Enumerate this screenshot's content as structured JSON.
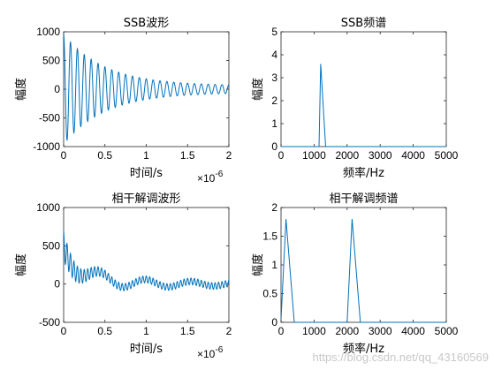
{
  "watermark": "https://blog.csdn.net/qq_43160569",
  "colors": {
    "line": "#0072BD",
    "axis": "#262626",
    "background": "#ffffff"
  },
  "chart_data": [
    {
      "type": "line",
      "title": "SSB波形",
      "xlabel": "时间/s",
      "ylabel": "幅度",
      "x_multiplier": "×10",
      "x_multiplier_exp": "-6",
      "xlim": [
        0,
        2
      ],
      "ylim": [
        -1000,
        1000
      ],
      "xticks": [
        "0",
        "0.5",
        "1",
        "1.5",
        "2"
      ],
      "yticks": [
        "-1000",
        "-500",
        "0",
        "500",
        "1000"
      ],
      "signal": {
        "kind": "decaying_oscillation",
        "amplitude": 900,
        "decay_time_us": 0.5,
        "frequency_mhz": 12,
        "floor_amplitude": 60
      }
    },
    {
      "type": "line",
      "title": "SSB频谱",
      "xlabel": "频率/Hz",
      "ylabel": "幅度",
      "xlim": [
        0,
        5000
      ],
      "ylim": [
        0,
        5
      ],
      "xticks": [
        "0",
        "1000",
        "2000",
        "3000",
        "4000",
        "5000"
      ],
      "yticks": [
        "0",
        "1",
        "2",
        "3",
        "4",
        "5"
      ],
      "x": [
        0,
        1150,
        1200,
        1350,
        5000
      ],
      "y": [
        0,
        0,
        3.6,
        0,
        0
      ]
    },
    {
      "type": "line",
      "title": "相干解调波形",
      "xlabel": "时间/s",
      "ylabel": "幅度",
      "x_multiplier": "×10",
      "x_multiplier_exp": "-6",
      "xlim": [
        0,
        2
      ],
      "ylim": [
        -500,
        1000
      ],
      "xticks": [
        "0",
        "0.5",
        "1",
        "1.5",
        "2"
      ],
      "yticks": [
        "-500",
        "0",
        "500",
        "1000"
      ],
      "signal": {
        "kind": "demodulated",
        "offset_start": 450,
        "decay_time_us": 0.25,
        "slow_amplitude": 120,
        "slow_period_us": 0.55,
        "ripple_amplitude": 80,
        "ripple_frequency_mhz": 24
      }
    },
    {
      "type": "line",
      "title": "相干解调频谱",
      "xlabel": "频率/Hz",
      "ylabel": "幅度",
      "xlim": [
        0,
        5000
      ],
      "ylim": [
        0,
        2
      ],
      "xticks": [
        "0",
        "1000",
        "2000",
        "3000",
        "4000",
        "5000"
      ],
      "yticks": [
        "0",
        "0.5",
        "1",
        "1.5",
        "2"
      ],
      "x": [
        0,
        150,
        400,
        2000,
        2150,
        2400,
        5000
      ],
      "y": [
        0.05,
        1.8,
        0,
        0,
        1.8,
        0,
        0
      ]
    }
  ]
}
